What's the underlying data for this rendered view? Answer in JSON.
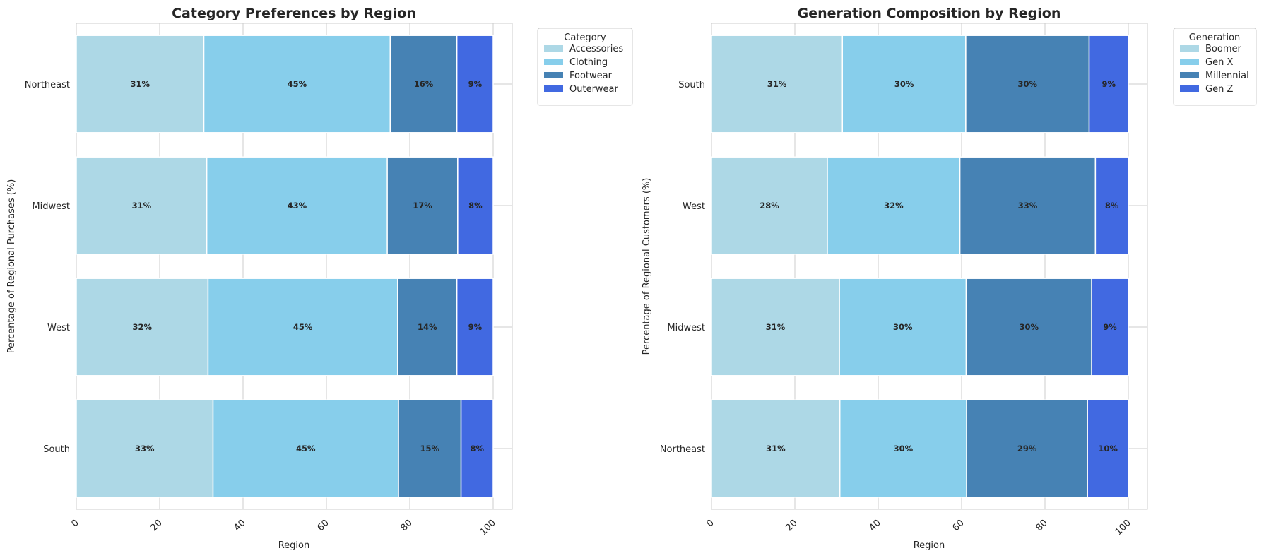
{
  "chart_data": [
    {
      "type": "bar",
      "orientation": "horizontal",
      "stacked": true,
      "title": "Category Preferences by Region",
      "xlabel": "Region",
      "ylabel": "Percentage of Regional Purchases (%)",
      "xlim": [
        0,
        100
      ],
      "xticks": [
        "0",
        "20",
        "40",
        "60",
        "80",
        "100"
      ],
      "grid": true,
      "legend": {
        "title": "Category",
        "placement": "outside-top-right"
      },
      "categories": [
        "South",
        "West",
        "Midwest",
        "Northeast"
      ],
      "series": [
        {
          "name": "Accessories",
          "color": "#add8e6",
          "values": [
            32.8,
            31.6,
            31.3,
            30.6
          ],
          "labels": [
            "33%",
            "32%",
            "31%",
            "31%"
          ]
        },
        {
          "name": "Clothing",
          "color": "#87ceeb",
          "values": [
            44.5,
            45.5,
            43.3,
            44.7
          ],
          "labels": [
            "45%",
            "45%",
            "43%",
            "45%"
          ]
        },
        {
          "name": "Footwear",
          "color": "#4682b4",
          "values": [
            15.0,
            14.2,
            16.9,
            16.0
          ],
          "labels": [
            "15%",
            "14%",
            "17%",
            "16%"
          ]
        },
        {
          "name": "Outerwear",
          "color": "#4169e1",
          "values": [
            7.7,
            8.7,
            8.5,
            8.7
          ],
          "labels": [
            "8%",
            "9%",
            "8%",
            "9%"
          ]
        }
      ]
    },
    {
      "type": "bar",
      "orientation": "horizontal",
      "stacked": true,
      "title": "Generation Composition by Region",
      "xlabel": "Region",
      "ylabel": "Percentage of Regional Customers (%)",
      "xlim": [
        0,
        100
      ],
      "xticks": [
        "0",
        "20",
        "40",
        "60",
        "80",
        "100"
      ],
      "grid": true,
      "legend": {
        "title": "Generation",
        "placement": "outside-top-right"
      },
      "categories": [
        "Northeast",
        "Midwest",
        "West",
        "South"
      ],
      "series": [
        {
          "name": "Boomer",
          "color": "#add8e6",
          "values": [
            30.8,
            30.7,
            27.8,
            31.4
          ],
          "labels": [
            "31%",
            "31%",
            "28%",
            "31%"
          ]
        },
        {
          "name": "Gen X",
          "color": "#87ceeb",
          "values": [
            30.4,
            30.4,
            31.8,
            29.6
          ],
          "labels": [
            "30%",
            "30%",
            "32%",
            "30%"
          ]
        },
        {
          "name": "Millennial",
          "color": "#4682b4",
          "values": [
            29.0,
            30.1,
            32.5,
            29.6
          ],
          "labels": [
            "29%",
            "30%",
            "33%",
            "30%"
          ]
        },
        {
          "name": "Gen Z",
          "color": "#4169e1",
          "values": [
            9.8,
            8.8,
            7.9,
            9.4
          ],
          "labels": [
            "10%",
            "9%",
            "8%",
            "9%"
          ]
        }
      ]
    }
  ]
}
